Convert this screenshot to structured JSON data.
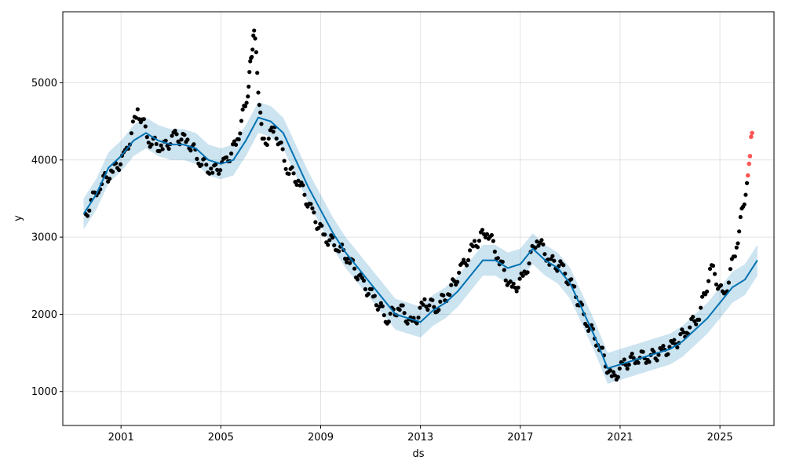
{
  "chart_data": {
    "type": "line",
    "title": "",
    "xlabel": "ds",
    "ylabel": "y",
    "x_ticks": [
      "2001",
      "2005",
      "2009",
      "2013",
      "2017",
      "2021",
      "2025"
    ],
    "y_ticks": [
      1000,
      2000,
      3000,
      4000,
      5000
    ],
    "xlim": [
      "1998-09-01",
      "2027-03-01"
    ],
    "ylim": [
      560,
      5920
    ],
    "grid": true,
    "legend": "none",
    "colors": {
      "observed": "#000000",
      "forecast_line": "#0072B2",
      "uncertainty_band": "#0072B2",
      "outliers": "#ff2a2a"
    },
    "forecast": {
      "x": [
        "1999-07-01",
        "2000-01-01",
        "2000-07-01",
        "2001-01-01",
        "2001-07-01",
        "2002-01-01",
        "2002-07-01",
        "2003-01-01",
        "2003-07-01",
        "2004-01-01",
        "2004-07-01",
        "2005-01-01",
        "2005-07-01",
        "2006-01-01",
        "2006-07-01",
        "2007-01-01",
        "2007-07-01",
        "2008-01-01",
        "2008-07-01",
        "2009-01-01",
        "2009-07-01",
        "2010-01-01",
        "2010-07-01",
        "2011-01-01",
        "2011-07-01",
        "2012-01-01",
        "2012-07-01",
        "2013-01-01",
        "2013-07-01",
        "2014-01-01",
        "2014-07-01",
        "2015-01-01",
        "2015-07-01",
        "2016-01-01",
        "2016-07-01",
        "2017-01-01",
        "2017-07-01",
        "2018-01-01",
        "2018-07-01",
        "2019-01-01",
        "2019-07-01",
        "2020-01-01",
        "2020-07-01",
        "2021-01-01",
        "2021-07-01",
        "2022-01-01",
        "2022-07-01",
        "2023-01-01",
        "2023-07-01",
        "2024-01-01",
        "2024-07-01",
        "2025-01-01",
        "2025-07-01",
        "2026-01-01"
      ],
      "yhat": [
        3300,
        3550,
        3900,
        4050,
        4250,
        4350,
        4250,
        4200,
        4200,
        4150,
        4000,
        3950,
        4000,
        4250,
        4550,
        4500,
        4350,
        4000,
        3650,
        3350,
        3050,
        2800,
        2600,
        2400,
        2200,
        2000,
        1950,
        1900,
        2050,
        2150,
        2300,
        2500,
        2700,
        2700,
        2600,
        2650,
        2850,
        2700,
        2600,
        2400,
        2050,
        1700,
        1300,
        1350,
        1400,
        1450,
        1500,
        1550,
        1650,
        1800,
        1950,
        2150,
        2350,
        2450
      ],
      "band_halfwidth": 200
    },
    "forecast_tail": {
      "x": [
        "2026-01-01",
        "2026-07-01"
      ],
      "yhat": [
        2450,
        2700
      ]
    },
    "observed": {
      "x": [
        "1999-08-01",
        "2000-03-01",
        "2000-09-01",
        "2001-03-01",
        "2001-09-01",
        "2002-03-01",
        "2002-09-01",
        "2003-03-01",
        "2003-09-01",
        "2004-03-01",
        "2004-09-01",
        "2005-03-01",
        "2005-09-01",
        "2006-02-01",
        "2006-05-01",
        "2006-09-01",
        "2007-03-01",
        "2007-09-01",
        "2008-03-01",
        "2008-09-01",
        "2009-03-01",
        "2009-09-01",
        "2010-03-01",
        "2010-09-01",
        "2011-03-01",
        "2011-09-01",
        "2012-03-01",
        "2012-09-01",
        "2013-03-01",
        "2013-09-01",
        "2014-03-01",
        "2014-09-01",
        "2015-03-01",
        "2015-09-01",
        "2016-03-01",
        "2016-09-01",
        "2017-03-01",
        "2017-09-01",
        "2018-03-01",
        "2018-09-01",
        "2019-03-01",
        "2019-09-01",
        "2020-03-01",
        "2020-09-01",
        "2021-03-01",
        "2021-09-01",
        "2022-03-01",
        "2022-09-01",
        "2023-03-01",
        "2023-09-01",
        "2024-03-01",
        "2024-09-01",
        "2025-03-01",
        "2025-09-01",
        "2026-02-01"
      ],
      "y": [
        3300,
        3700,
        3850,
        4050,
        4650,
        4250,
        4150,
        4300,
        4250,
        4000,
        3850,
        3950,
        4250,
        4900,
        5700,
        4200,
        4400,
        3900,
        3700,
        3300,
        3000,
        2900,
        2700,
        2400,
        2200,
        1950,
        2100,
        1850,
        2150,
        2100,
        2300,
        2600,
        2900,
        3100,
        2700,
        2300,
        2500,
        3000,
        2700,
        2600,
        2300,
        1900,
        1600,
        1150,
        1350,
        1450,
        1450,
        1500,
        1600,
        1800,
        2000,
        2600,
        2200,
        2900,
        3700
      ]
    },
    "outliers": {
      "x": [
        "2026-02-15",
        "2026-03-01",
        "2026-03-15",
        "2026-04-01",
        "2026-04-15"
      ],
      "y": [
        3800,
        3950,
        4050,
        4300,
        4350
      ]
    }
  }
}
